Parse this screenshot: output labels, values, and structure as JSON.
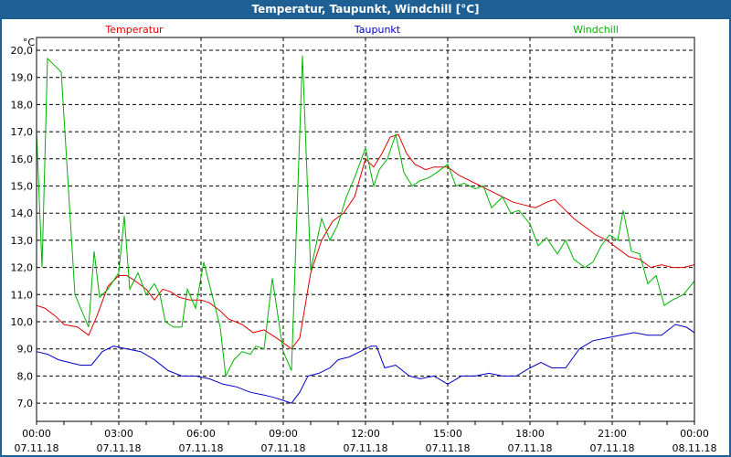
{
  "window": {
    "title": "Temperatur, Taupunkt, Windchill [°C]"
  },
  "chart_data": {
    "type": "line",
    "title": "Temperatur, Taupunkt, Windchill [°C]",
    "ylabel": "°C",
    "xlabel": "",
    "ylim": [
      6.3,
      20.5
    ],
    "xlim_hours": [
      0,
      24
    ],
    "grid": true,
    "legend_position": "top",
    "y_ticks": [
      "20,0",
      "19,0",
      "18,0",
      "17,0",
      "16,0",
      "15,0",
      "14,0",
      "13,0",
      "12,0",
      "11,0",
      "10,0",
      "9,0",
      "8,0",
      "7,0"
    ],
    "x_ticks": [
      {
        "time": "00:00",
        "date": "07.11.18"
      },
      {
        "time": "03:00",
        "date": "07.11.18"
      },
      {
        "time": "06:00",
        "date": "07.11.18"
      },
      {
        "time": "09:00",
        "date": "07.11.18"
      },
      {
        "time": "12:00",
        "date": "07.11.18"
      },
      {
        "time": "15:00",
        "date": "07.11.18"
      },
      {
        "time": "18:00",
        "date": "07.11.18"
      },
      {
        "time": "21:00",
        "date": "07.11.18"
      },
      {
        "time": "00:00",
        "date": "08.11.18"
      }
    ],
    "series": [
      {
        "name": "Temperatur",
        "color": "#e00000",
        "x": [
          0,
          0.3,
          0.7,
          1.0,
          1.5,
          1.9,
          2.2,
          2.6,
          3.0,
          3.3,
          3.6,
          4.0,
          4.3,
          4.6,
          4.9,
          5.2,
          5.6,
          6.0,
          6.3,
          6.7,
          7.0,
          7.5,
          7.9,
          8.3,
          8.6,
          8.9,
          9.3,
          9.6,
          10.0,
          10.4,
          10.8,
          11.2,
          11.6,
          12.0,
          12.3,
          12.6,
          12.9,
          13.2,
          13.5,
          13.8,
          14.2,
          14.5,
          15.0,
          15.4,
          15.8,
          16.2,
          16.6,
          17.0,
          17.4,
          17.8,
          18.2,
          18.6,
          18.9,
          19.3,
          19.6,
          20.0,
          20.4,
          20.8,
          21.2,
          21.6,
          22.0,
          22.4,
          22.8,
          23.2,
          23.6,
          24.0
        ],
        "values": [
          10.6,
          10.5,
          10.2,
          9.9,
          9.8,
          9.5,
          10.2,
          11.3,
          11.7,
          11.7,
          11.5,
          11.2,
          10.8,
          11.2,
          11.1,
          10.9,
          10.8,
          10.8,
          10.7,
          10.4,
          10.1,
          9.9,
          9.6,
          9.7,
          9.5,
          9.3,
          9.0,
          9.4,
          11.8,
          13.0,
          13.7,
          14.0,
          14.6,
          16.0,
          15.7,
          16.2,
          16.8,
          16.9,
          16.2,
          15.8,
          15.6,
          15.7,
          15.7,
          15.4,
          15.2,
          15.0,
          14.8,
          14.6,
          14.4,
          14.3,
          14.2,
          14.4,
          14.5,
          14.1,
          13.8,
          13.5,
          13.2,
          13.0,
          12.7,
          12.4,
          12.3,
          12.0,
          12.1,
          12.0,
          12.0,
          12.1
        ]
      },
      {
        "name": "Taupunkt",
        "color": "#0000c8",
        "x": [
          0,
          0.4,
          0.8,
          1.2,
          1.6,
          2.0,
          2.4,
          2.8,
          3.3,
          3.8,
          4.3,
          4.8,
          5.3,
          5.8,
          6.3,
          6.8,
          7.3,
          7.8,
          8.3,
          8.7,
          9.0,
          9.3,
          9.6,
          9.9,
          10.3,
          10.7,
          11.0,
          11.4,
          11.8,
          12.0,
          12.2,
          12.4,
          12.7,
          13.1,
          13.6,
          14.0,
          14.5,
          15.0,
          15.5,
          16.0,
          16.5,
          17.0,
          17.5,
          18.0,
          18.4,
          18.8,
          19.3,
          19.8,
          20.3,
          20.8,
          21.3,
          21.8,
          22.3,
          22.8,
          23.3,
          23.7,
          24.0
        ],
        "values": [
          8.9,
          8.8,
          8.6,
          8.5,
          8.4,
          8.4,
          8.9,
          9.1,
          9.0,
          8.9,
          8.6,
          8.2,
          8.0,
          8.0,
          7.9,
          7.7,
          7.6,
          7.4,
          7.3,
          7.2,
          7.1,
          7.0,
          7.4,
          8.0,
          8.1,
          8.3,
          8.6,
          8.7,
          8.9,
          9.0,
          9.1,
          9.1,
          8.3,
          8.4,
          8.0,
          7.9,
          8.0,
          7.7,
          8.0,
          8.0,
          8.1,
          8.0,
          8.0,
          8.3,
          8.5,
          8.3,
          8.3,
          9.0,
          9.3,
          9.4,
          9.5,
          9.6,
          9.5,
          9.5,
          9.9,
          9.8,
          9.6
        ]
      },
      {
        "name": "Windchill",
        "color": "#00b400",
        "x": [
          0,
          0.2,
          0.4,
          0.6,
          0.9,
          1.4,
          1.9,
          2.1,
          2.3,
          2.6,
          3.0,
          3.2,
          3.4,
          3.7,
          4.0,
          4.3,
          4.5,
          4.7,
          5.0,
          5.3,
          5.5,
          5.8,
          6.1,
          6.4,
          6.7,
          6.9,
          7.2,
          7.5,
          7.8,
          8.0,
          8.3,
          8.6,
          9.0,
          9.3,
          9.7,
          10.0,
          10.4,
          10.7,
          11.0,
          11.3,
          11.6,
          12.0,
          12.3,
          12.5,
          12.8,
          13.1,
          13.4,
          13.7,
          14.0,
          14.3,
          14.6,
          15.0,
          15.3,
          15.6,
          16.0,
          16.3,
          16.6,
          17.0,
          17.3,
          17.6,
          18.0,
          18.3,
          18.6,
          19.0,
          19.3,
          19.6,
          20.0,
          20.3,
          20.6,
          20.9,
          21.2,
          21.4,
          21.7,
          22.0,
          22.3,
          22.6,
          22.9,
          23.2,
          23.6,
          24.0
        ],
        "values": [
          17.0,
          12.0,
          19.7,
          19.5,
          19.2,
          11.0,
          9.8,
          12.6,
          10.9,
          11.2,
          11.8,
          13.9,
          11.2,
          11.8,
          11.0,
          11.4,
          11.0,
          10.0,
          9.8,
          9.8,
          11.2,
          10.5,
          12.2,
          11.0,
          9.8,
          8.0,
          8.6,
          8.9,
          8.8,
          9.1,
          9.0,
          11.6,
          8.9,
          8.2,
          19.8,
          11.9,
          13.8,
          13.0,
          13.6,
          14.6,
          15.3,
          16.4,
          15.0,
          15.6,
          16.0,
          16.9,
          15.5,
          15.0,
          15.2,
          15.3,
          15.5,
          15.8,
          15.0,
          15.1,
          14.9,
          15.0,
          14.2,
          14.6,
          14.0,
          14.1,
          13.6,
          12.8,
          13.1,
          12.5,
          13.0,
          12.3,
          12.0,
          12.2,
          12.8,
          13.2,
          13.0,
          14.1,
          12.6,
          12.5,
          11.4,
          11.7,
          10.6,
          10.8,
          11.0,
          11.5
        ]
      }
    ]
  }
}
